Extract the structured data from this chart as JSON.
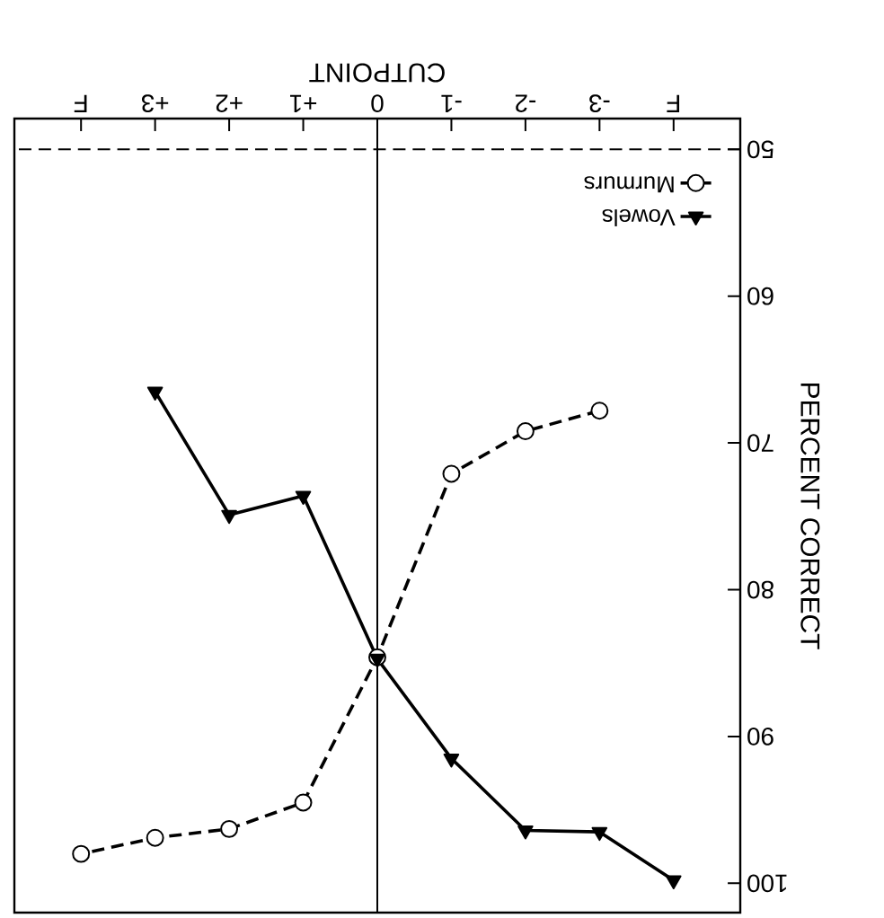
{
  "chart_data": {
    "type": "line",
    "xlabel": "CUTPOINT",
    "ylabel": "PERCENT CORRECT",
    "x": [
      -4,
      -3,
      -2,
      -1,
      0,
      1,
      2,
      3,
      4
    ],
    "series": [
      {
        "name": "Murmurs",
        "color": "#000000",
        "marker": "circle",
        "line_style": "dashed",
        "values": [
          null,
          67.8,
          69.2,
          72.1,
          84.6,
          94.5,
          96.3,
          96.9,
          98.0
        ]
      },
      {
        "name": "Vowels",
        "color": "#000000",
        "marker": "triangle",
        "line_style": "solid",
        "values": [
          99.8,
          96.5,
          96.4,
          91.5,
          84.7,
          73.6,
          74.9,
          66.5,
          null
        ]
      }
    ],
    "xlim": [
      4.9,
      -4.9
    ],
    "ylim": [
      102,
      47.9
    ],
    "xticks": [
      {
        "value": -4,
        "label": "F"
      },
      {
        "value": -3,
        "label": "-3"
      },
      {
        "value": -2,
        "label": "-2"
      },
      {
        "value": -1,
        "label": "-1"
      },
      0,
      {
        "value": 1,
        "label": "+1"
      },
      {
        "value": 2,
        "label": "+2"
      },
      {
        "value": 3,
        "label": "+3"
      },
      {
        "value": 4,
        "label": "F"
      }
    ],
    "yticks": [
      50,
      60,
      70,
      80,
      90,
      100
    ],
    "ref_lines": [
      {
        "axis": "y",
        "value": 50,
        "line_style": "dashed"
      },
      {
        "axis": "x",
        "value": 0,
        "line_style": "solid"
      }
    ],
    "grid": false,
    "legend": "top right"
  }
}
